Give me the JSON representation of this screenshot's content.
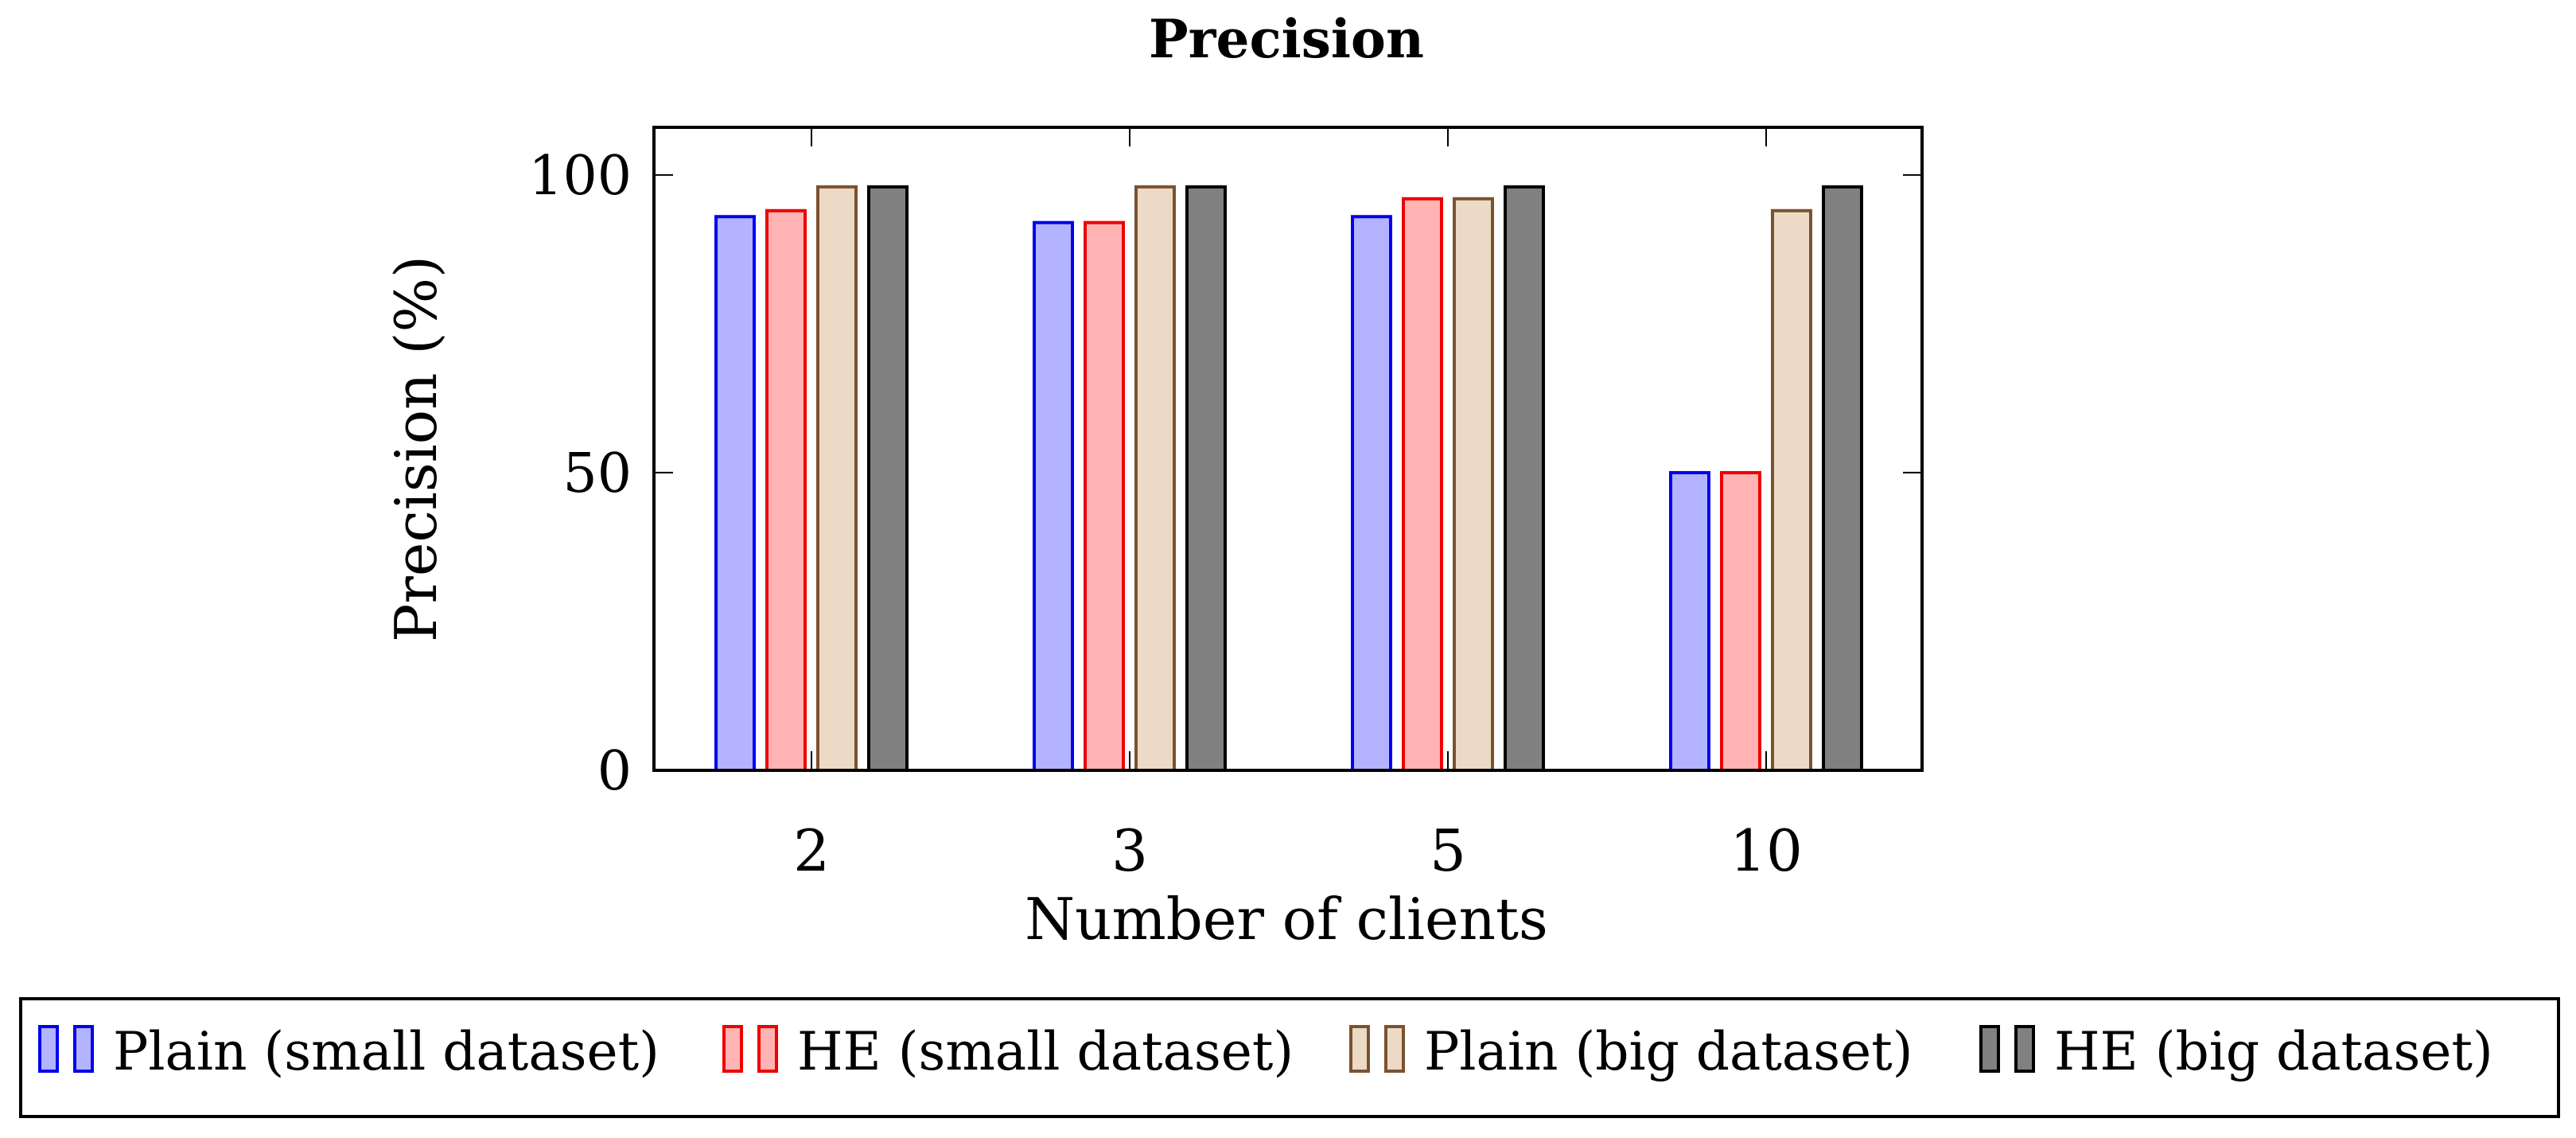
{
  "chart_data": {
    "type": "bar",
    "title": "Precision",
    "xlabel": "Number of clients",
    "ylabel": "Precision (%)",
    "categories": [
      "2",
      "3",
      "5",
      "10"
    ],
    "ylim": [
      0,
      108
    ],
    "yticks": [
      0,
      50,
      100
    ],
    "grid": false,
    "legend_position": "bottom",
    "series": [
      {
        "name": "Plain (small dataset)",
        "values": [
          93,
          92,
          93,
          50
        ],
        "fill": "#b3b3ff",
        "stroke": "#0000ee"
      },
      {
        "name": "HE (small dataset)",
        "values": [
          94,
          92,
          96,
          50
        ],
        "fill": "#ffb3b3",
        "stroke": "#ee0000"
      },
      {
        "name": "Plain (big dataset)",
        "values": [
          98,
          98,
          96,
          94
        ],
        "fill": "#ecdac7",
        "stroke": "#7a5230"
      },
      {
        "name": "HE (big dataset)",
        "values": [
          98,
          98,
          98,
          98
        ],
        "fill": "#808080",
        "stroke": "#000000"
      }
    ]
  }
}
